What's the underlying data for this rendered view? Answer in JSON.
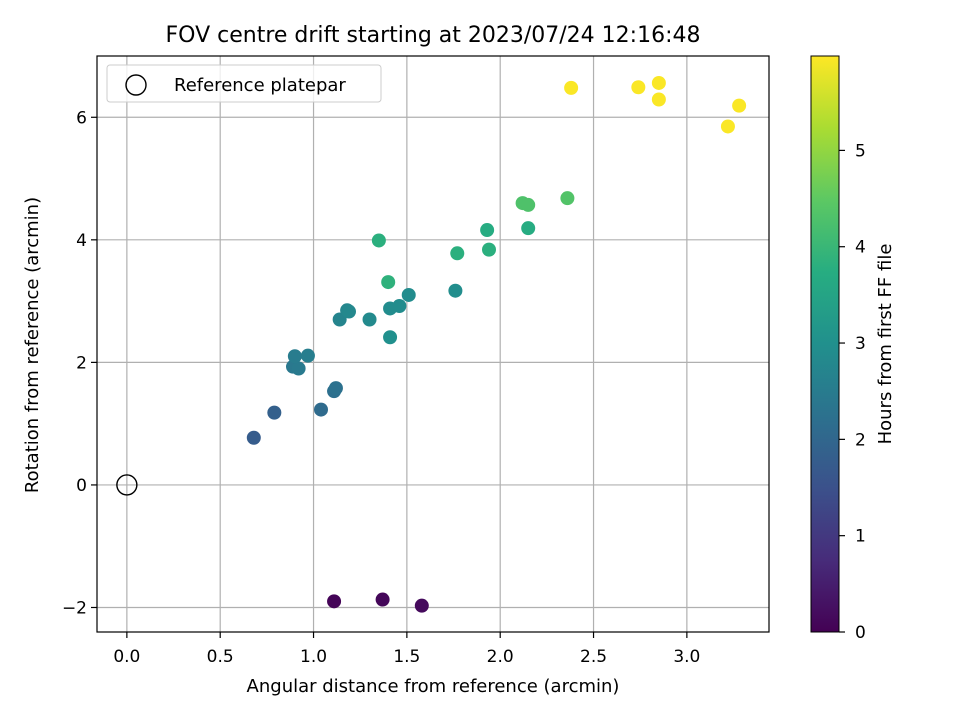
{
  "chart_data": {
    "type": "scatter",
    "title": "FOV centre drift starting at 2023/07/24 12:16:48",
    "xlabel": "Angular distance from reference (arcmin)",
    "ylabel": "Rotation from reference (arcmin)",
    "xlim": [
      -0.16,
      3.44
    ],
    "ylim": [
      -2.4,
      7.0
    ],
    "xticks": [
      0.0,
      0.5,
      1.0,
      1.5,
      2.0,
      2.5,
      3.0
    ],
    "xtick_labels": [
      "0.0",
      "0.5",
      "1.0",
      "1.5",
      "2.0",
      "2.5",
      "3.0"
    ],
    "yticks": [
      -2,
      0,
      2,
      4,
      6
    ],
    "ytick_labels": [
      "−2",
      "0",
      "2",
      "4",
      "6"
    ],
    "grid": true,
    "legend": {
      "placement": "upper-left",
      "entries": [
        {
          "label": "Reference platepar",
          "marker": "open-circle"
        }
      ]
    },
    "reference_point": {
      "x": 0.0,
      "y": 0.0
    },
    "colorbar": {
      "label": "Hours from first FF file",
      "colormap": "viridis",
      "range": [
        0,
        5.98
      ],
      "ticks": [
        0,
        1,
        2,
        3,
        4,
        5
      ],
      "tick_labels": [
        "0",
        "1",
        "2",
        "3",
        "4",
        "5"
      ]
    },
    "points": [
      {
        "x": 1.11,
        "y": -1.9,
        "c": 0.05
      },
      {
        "x": 1.37,
        "y": -1.87,
        "c": 0.1
      },
      {
        "x": 1.58,
        "y": -1.97,
        "c": 0.15
      },
      {
        "x": 0.68,
        "y": 0.77,
        "c": 1.75
      },
      {
        "x": 0.79,
        "y": 1.18,
        "c": 1.85
      },
      {
        "x": 1.04,
        "y": 1.23,
        "c": 2.1
      },
      {
        "x": 1.11,
        "y": 1.53,
        "c": 2.2
      },
      {
        "x": 1.12,
        "y": 1.58,
        "c": 2.25
      },
      {
        "x": 0.89,
        "y": 1.93,
        "c": 2.4
      },
      {
        "x": 0.92,
        "y": 1.9,
        "c": 2.45
      },
      {
        "x": 0.9,
        "y": 2.1,
        "c": 2.5
      },
      {
        "x": 0.97,
        "y": 2.11,
        "c": 2.55
      },
      {
        "x": 1.14,
        "y": 2.7,
        "c": 2.7
      },
      {
        "x": 1.18,
        "y": 2.85,
        "c": 2.75
      },
      {
        "x": 1.19,
        "y": 2.83,
        "c": 2.8
      },
      {
        "x": 1.3,
        "y": 2.7,
        "c": 2.85
      },
      {
        "x": 1.41,
        "y": 2.88,
        "c": 2.9
      },
      {
        "x": 1.46,
        "y": 2.92,
        "c": 2.9
      },
      {
        "x": 1.51,
        "y": 3.1,
        "c": 2.9
      },
      {
        "x": 1.41,
        "y": 2.41,
        "c": 3.0
      },
      {
        "x": 1.76,
        "y": 3.17,
        "c": 2.95
      },
      {
        "x": 1.35,
        "y": 3.99,
        "c": 3.8
      },
      {
        "x": 1.4,
        "y": 3.31,
        "c": 3.85
      },
      {
        "x": 1.77,
        "y": 3.78,
        "c": 3.8
      },
      {
        "x": 1.94,
        "y": 3.84,
        "c": 3.8
      },
      {
        "x": 1.93,
        "y": 4.16,
        "c": 3.7
      },
      {
        "x": 2.15,
        "y": 4.19,
        "c": 3.7
      },
      {
        "x": 2.12,
        "y": 4.6,
        "c": 4.3
      },
      {
        "x": 2.15,
        "y": 4.57,
        "c": 4.3
      },
      {
        "x": 2.36,
        "y": 4.68,
        "c": 4.35
      },
      {
        "x": 2.38,
        "y": 6.48,
        "c": 5.95
      },
      {
        "x": 2.74,
        "y": 6.49,
        "c": 5.95
      },
      {
        "x": 2.85,
        "y": 6.56,
        "c": 5.95
      },
      {
        "x": 2.85,
        "y": 6.29,
        "c": 5.95
      },
      {
        "x": 3.22,
        "y": 5.85,
        "c": 5.95
      },
      {
        "x": 3.28,
        "y": 6.19,
        "c": 5.95
      }
    ]
  }
}
